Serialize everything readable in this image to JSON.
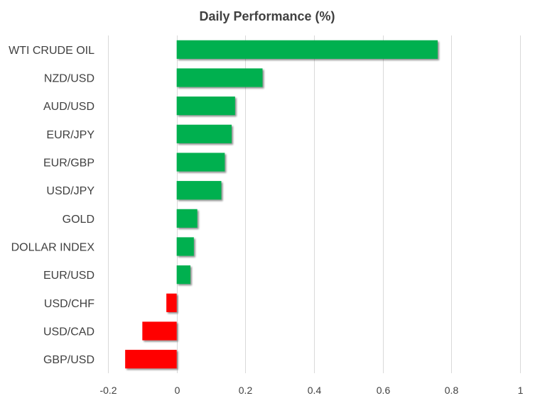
{
  "chart_data": {
    "type": "bar",
    "orientation": "horizontal",
    "title": "Daily Performance  (%)",
    "categories": [
      "WTI CRUDE OIL",
      "NZD/USD",
      "AUD/USD",
      "EUR/JPY",
      "EUR/GBP",
      "USD/JPY",
      "GOLD",
      "DOLLAR INDEX",
      "EUR/USD",
      "USD/CHF",
      "USD/CAD",
      "GBP/USD"
    ],
    "values": [
      0.76,
      0.25,
      0.17,
      0.16,
      0.14,
      0.13,
      0.06,
      0.05,
      0.04,
      -0.03,
      -0.1,
      -0.15
    ],
    "xlim": [
      -0.2,
      1
    ],
    "xticks": [
      -0.2,
      0,
      0.2,
      0.4,
      0.6,
      0.8,
      1
    ],
    "xtick_labels": [
      "-0.2",
      "0",
      "0.2",
      "0.4",
      "0.6",
      "0.8",
      "1"
    ],
    "grid": "vertical",
    "legend": "none",
    "colors": {
      "positive": "#00b050",
      "negative": "#ff0000",
      "grid": "#d9d9d9",
      "text": "#404040"
    }
  }
}
